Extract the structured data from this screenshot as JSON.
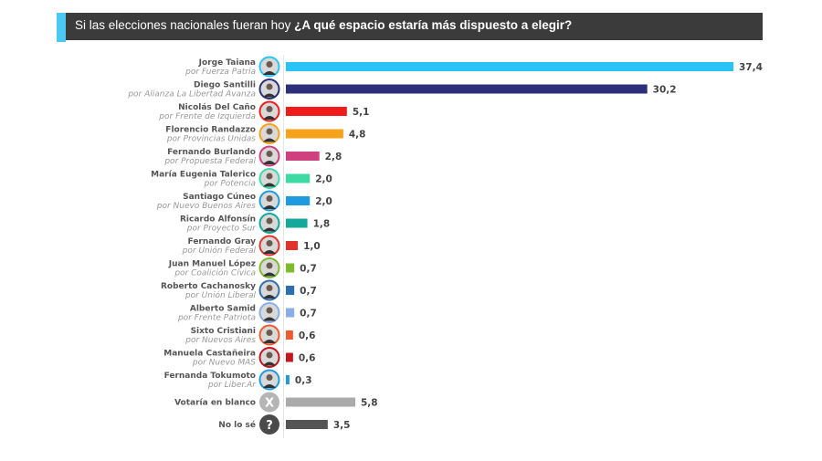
{
  "header": {
    "title_plain": "Si las elecciones nacionales fueran hoy",
    "title_bold": "¿A qué espacio estaría más dispuesto a elegir?"
  },
  "chart_data": {
    "type": "bar",
    "orientation": "horizontal",
    "xlim": [
      0,
      37.4
    ],
    "grid": false,
    "categories": [
      "Jorge Taiana",
      "Diego Santilli",
      "Nicolás Del Caño",
      "Florencio Randazzo",
      "Fernando Burlando",
      "María Eugenia Talerico",
      "Santiago Cúneo",
      "Ricardo Alfonsín",
      "Fernando Gray",
      "Juan Manuel López",
      "Roberto Cachanosky",
      "Alberto Samid",
      "Sixto Cristiani",
      "Manuela Castañeira",
      "Fernanda Tokumoto",
      "Votaría en blanco",
      "No lo sé"
    ],
    "parties": [
      "por Fuerza Patria",
      "por Alianza La Libertad Avanza",
      "por Frente de Izquierda",
      "por Provincias Unidas",
      "por Propuesta Federal",
      "por Potencia",
      "por Nuevo Buenos Aires",
      "por Proyecto Sur",
      "por Unión Federal",
      "por Coalición Cívica",
      "por Unión Liberal",
      "por Frente Patriota",
      "por Nuevos Aires",
      "por Nuevo MAS",
      "por Liber.Ar",
      "",
      ""
    ],
    "values": [
      37.4,
      30.2,
      5.1,
      4.8,
      2.8,
      2.0,
      2.0,
      1.8,
      1.0,
      0.7,
      0.7,
      0.7,
      0.6,
      0.6,
      0.3,
      5.8,
      3.5
    ],
    "value_labels": [
      "37,4",
      "30,2",
      "5,1",
      "4,8",
      "2,8",
      "2,0",
      "2,0",
      "1,8",
      "1,0",
      "0,7",
      "0,7",
      "0,7",
      "0,6",
      "0,6",
      "0,3",
      "5,8",
      "3,5"
    ],
    "colors": [
      "#29c4f5",
      "#2d2f7a",
      "#f01c1c",
      "#f7a21b",
      "#d0407e",
      "#3ddba3",
      "#1e9be0",
      "#13a89a",
      "#e0332b",
      "#7dbb2a",
      "#2c6fb0",
      "#8aaee8",
      "#f05a30",
      "#c4161c",
      "#1e9be0",
      "#aaaaaa",
      "#555555"
    ],
    "icons": [
      "avatar",
      "avatar",
      "avatar",
      "avatar",
      "avatar",
      "avatar",
      "avatar",
      "avatar",
      "avatar",
      "avatar",
      "avatar",
      "avatar",
      "avatar",
      "avatar",
      "avatar",
      "x-icon",
      "question-icon"
    ],
    "icon_glyphs": {
      "x-icon": "X",
      "question-icon": "?"
    }
  }
}
